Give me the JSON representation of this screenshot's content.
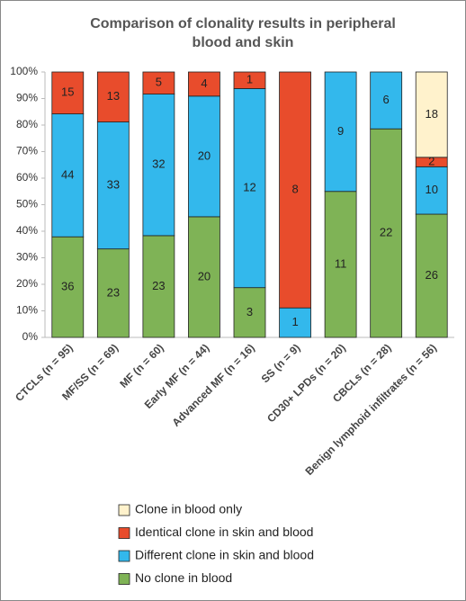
{
  "chart_data": {
    "type": "bar",
    "stacked": "percent",
    "title": [
      "Comparison of clonality results in peripheral",
      "blood and skin"
    ],
    "categories": [
      "CTCLs (n = 95)",
      "MF/SS (n = 69)",
      "MF (n = 60)",
      "Early MF (n = 44)",
      "Advanced MF (n = 16)",
      "SS (n = 9)",
      "CD30+ LPDs (n = 20)",
      "CBCLs (n = 28)",
      "Benign lymphoid infiltrates (n = 56)"
    ],
    "series": [
      {
        "name": "No clone in blood",
        "color": "#7fb356",
        "values": [
          36,
          23,
          23,
          20,
          3,
          null,
          11,
          22,
          26
        ]
      },
      {
        "name": "Different clone in skin and blood",
        "color": "#33b8ec",
        "values": [
          44,
          33,
          32,
          20,
          12,
          1,
          9,
          6,
          10
        ]
      },
      {
        "name": "Identical clone in skin and blood",
        "color": "#e84c2c",
        "values": [
          15,
          13,
          5,
          4,
          1,
          8,
          null,
          null,
          2
        ]
      },
      {
        "name": "Clone in blood only",
        "color": "#fff2cc",
        "values": [
          null,
          null,
          null,
          null,
          null,
          null,
          null,
          null,
          18
        ]
      }
    ],
    "ylim": [
      0,
      100
    ],
    "yticks": [
      {
        "value": 0,
        "label": "0%"
      },
      {
        "value": 10,
        "label": "10%"
      },
      {
        "value": 20,
        "label": "20%"
      },
      {
        "value": 30,
        "label": "30%"
      },
      {
        "value": 40,
        "label": "40%"
      },
      {
        "value": 50,
        "label": "50%"
      },
      {
        "value": 60,
        "label": "60%"
      },
      {
        "value": 70,
        "label": "70%"
      },
      {
        "value": 80,
        "label": "80%"
      },
      {
        "value": 90,
        "label": "90%"
      },
      {
        "value": 100,
        "label": "100%"
      }
    ],
    "legend": "bottom"
  }
}
